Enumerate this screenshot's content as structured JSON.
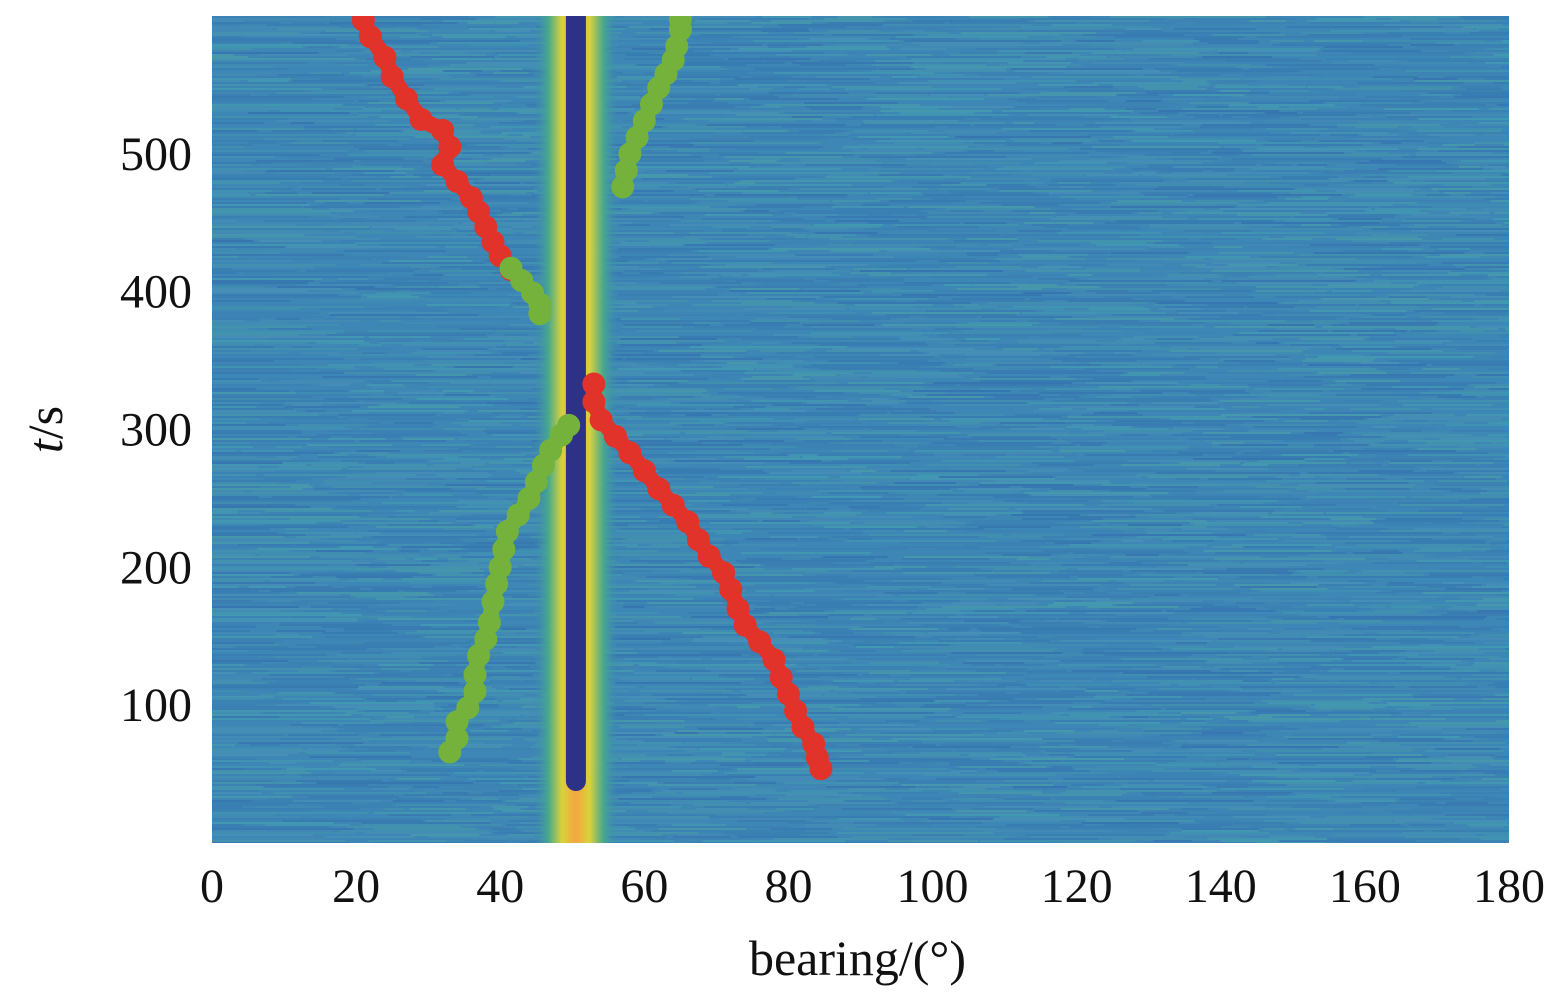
{
  "chart_data": {
    "type": "heatmap",
    "title": "",
    "xlabel": "bearing/(°)",
    "ylabel_italic": "t",
    "ylabel_rest": "/s",
    "xlim": [
      0,
      180
    ],
    "ylim": [
      0,
      600
    ],
    "xticks": [
      0,
      20,
      40,
      60,
      80,
      100,
      120,
      140,
      160,
      180
    ],
    "yticks": [
      100,
      200,
      300,
      400,
      500
    ],
    "background_color": "#3e86b4",
    "grid": false,
    "legend": "none",
    "heat_band": {
      "center": 50.5,
      "width": 12,
      "colors": [
        "#3e86b4",
        "#46a88e",
        "#d8d23a",
        "#f4a640"
      ]
    },
    "series": [
      {
        "color": "#2e3286",
        "style": "line",
        "points": [
          [
            50.5,
            600
          ],
          [
            50.5,
            45
          ]
        ]
      },
      {
        "color": "#e1332a",
        "style": "markers",
        "points": [
          [
            21,
            597
          ],
          [
            22,
            585
          ],
          [
            24,
            570
          ],
          [
            25,
            556
          ],
          [
            27,
            540
          ],
          [
            29,
            525
          ],
          [
            32,
            517
          ],
          [
            33,
            505
          ],
          [
            32,
            492
          ],
          [
            34,
            480
          ],
          [
            36,
            468
          ],
          [
            37,
            458
          ],
          [
            38,
            447
          ],
          [
            39,
            436
          ],
          [
            40,
            426
          ],
          [
            41.5,
            416
          ]
        ]
      },
      {
        "color": "#e1332a",
        "style": "markers",
        "points": [
          [
            53,
            333
          ],
          [
            53,
            320
          ],
          [
            54,
            307
          ],
          [
            56,
            295
          ],
          [
            58,
            283
          ],
          [
            60,
            270
          ],
          [
            62,
            257
          ],
          [
            64,
            245
          ],
          [
            66,
            233
          ],
          [
            67.5,
            220
          ],
          [
            69,
            208
          ],
          [
            71,
            196
          ],
          [
            72,
            184
          ],
          [
            73,
            170
          ],
          [
            74,
            158
          ],
          [
            76,
            146
          ],
          [
            78,
            133
          ],
          [
            79,
            120
          ],
          [
            80,
            108
          ],
          [
            81,
            96
          ],
          [
            82,
            84
          ],
          [
            83.5,
            72
          ],
          [
            84,
            62
          ],
          [
            84.5,
            54
          ]
        ]
      },
      {
        "color": "#74b23c",
        "style": "markers",
        "points": [
          [
            41.5,
            417
          ],
          [
            43,
            408
          ],
          [
            44.5,
            399
          ],
          [
            45.5,
            391
          ],
          [
            45.5,
            384
          ]
        ]
      },
      {
        "color": "#74b23c",
        "style": "markers",
        "points": [
          [
            33,
            66
          ],
          [
            34,
            76
          ],
          [
            34,
            88
          ],
          [
            35.5,
            98
          ],
          [
            36.5,
            110
          ],
          [
            36.5,
            122
          ],
          [
            37,
            136
          ],
          [
            38,
            148
          ],
          [
            38.5,
            160
          ],
          [
            39,
            175
          ],
          [
            39.5,
            188
          ],
          [
            40,
            200
          ],
          [
            40.5,
            213
          ],
          [
            41,
            226
          ],
          [
            42.5,
            238
          ],
          [
            44,
            250
          ],
          [
            45,
            262
          ],
          [
            46,
            274
          ],
          [
            47,
            285
          ],
          [
            48.5,
            296
          ],
          [
            49.5,
            303
          ]
        ]
      },
      {
        "color": "#74b23c",
        "style": "markers",
        "points": [
          [
            57,
            476
          ],
          [
            57.5,
            488
          ],
          [
            58,
            500
          ],
          [
            59,
            512
          ],
          [
            60,
            524
          ],
          [
            61,
            536
          ],
          [
            62,
            548
          ],
          [
            63,
            558
          ],
          [
            64,
            568
          ],
          [
            64.5,
            578
          ],
          [
            65,
            590
          ],
          [
            65,
            598
          ]
        ]
      }
    ]
  }
}
